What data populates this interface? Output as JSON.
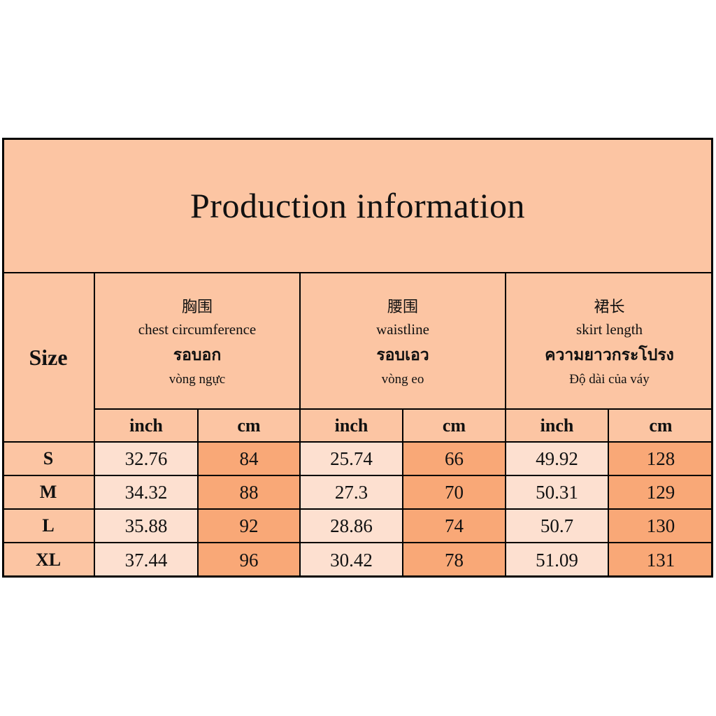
{
  "header": {
    "title": "Production information"
  },
  "table": {
    "size_header": "Size",
    "columns": [
      {
        "zh": "胸围",
        "en": "chest circumference",
        "th": "รอบอก",
        "vi": "vòng ngực",
        "units": [
          "inch",
          "cm"
        ]
      },
      {
        "zh": "腰围",
        "en": "waistline",
        "th": "รอบเอว",
        "vi": "vòng eo",
        "units": [
          "inch",
          "cm"
        ]
      },
      {
        "zh": "裙长",
        "en": "skirt length",
        "th": "ความยาวกระโปรง",
        "vi": "Độ dài của váy",
        "units": [
          "inch",
          "cm"
        ]
      }
    ],
    "rows": [
      {
        "size": "S",
        "values": [
          32.76,
          84,
          25.74,
          66,
          49.92,
          128
        ]
      },
      {
        "size": "M",
        "values": [
          34.32,
          88,
          27.3,
          70,
          50.31,
          129
        ]
      },
      {
        "size": "L",
        "values": [
          35.88,
          92,
          28.86,
          74,
          50.7,
          130
        ]
      },
      {
        "size": "XL",
        "values": [
          37.44,
          96,
          30.42,
          78,
          51.09,
          131
        ]
      }
    ]
  }
}
